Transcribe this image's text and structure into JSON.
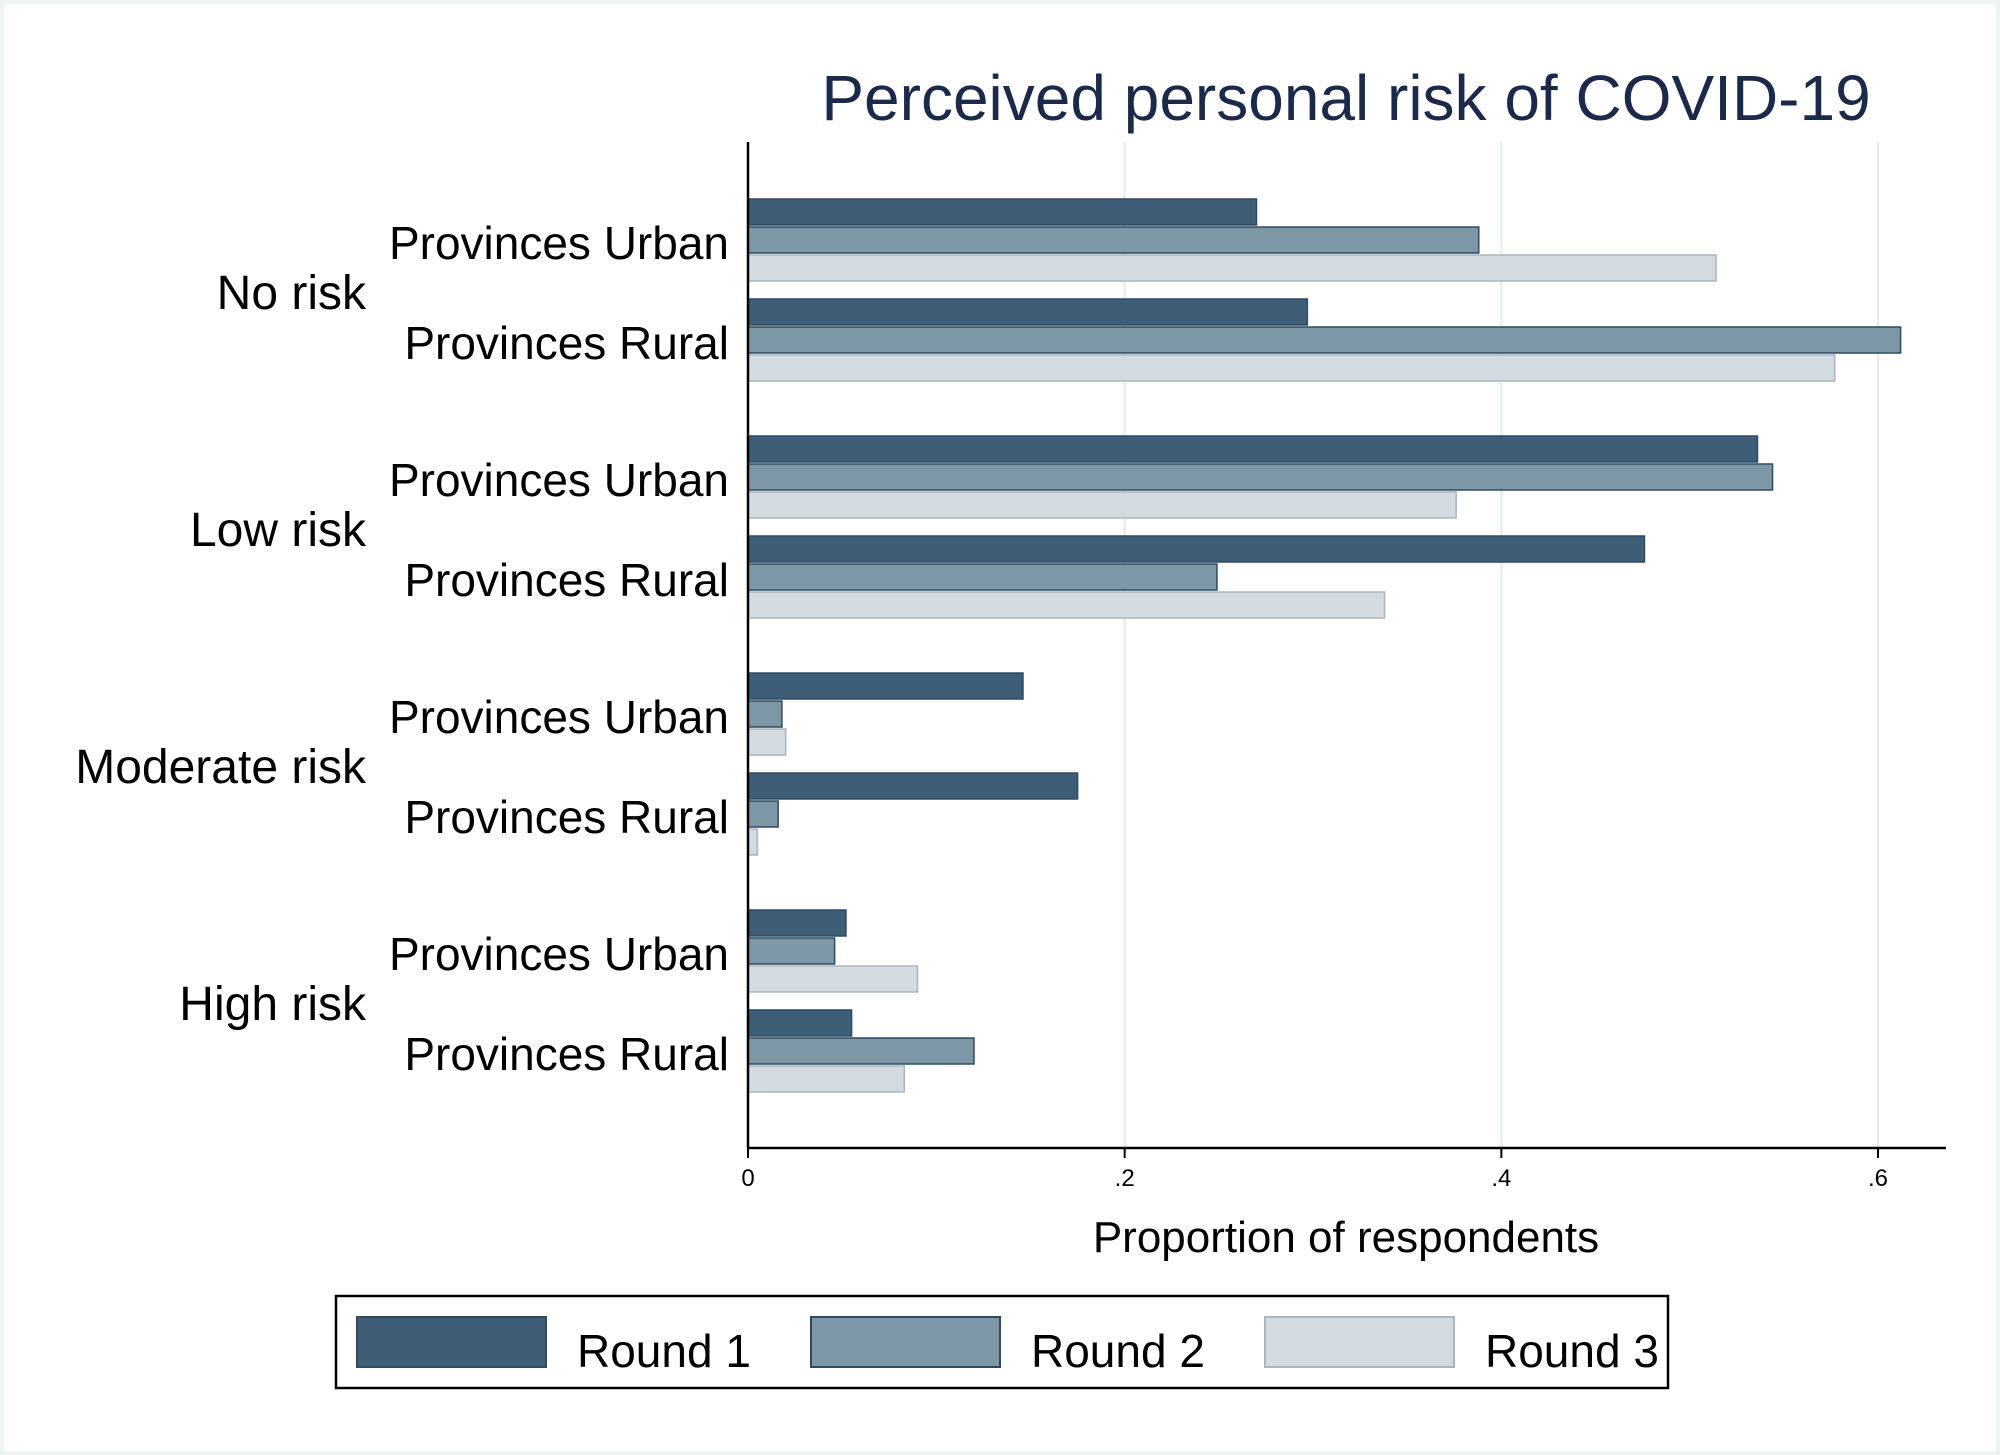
{
  "chart_data": {
    "type": "bar",
    "orientation": "horizontal",
    "title": "Perceived personal risk of COVID-19",
    "xlabel": "Proportion of respondents",
    "xlim": [
      0,
      0.64
    ],
    "x_ticks": [
      {
        "value": 0,
        "label": "0"
      },
      {
        "value": 0.2,
        "label": ".2"
      },
      {
        "value": 0.4,
        "label": ".4"
      },
      {
        "value": 0.6,
        "label": ".6"
      }
    ],
    "grid": true,
    "legend_position": "bottom",
    "groups": [
      "No risk",
      "Low risk",
      "Moderate risk",
      "High risk"
    ],
    "subcategories": [
      "Provinces Urban",
      "Provinces Rural"
    ],
    "series": [
      {
        "name": "Round 1",
        "color": "#3e5e78",
        "values": [
          [
            0.27,
            0.297
          ],
          [
            0.536,
            0.476
          ],
          [
            0.146,
            0.175
          ],
          [
            0.052,
            0.055
          ]
        ]
      },
      {
        "name": "Round 2",
        "color": "#7d97a6",
        "values": [
          [
            0.388,
            0.612
          ],
          [
            0.544,
            0.249
          ],
          [
            0.018,
            0.016
          ],
          [
            0.046,
            0.12
          ]
        ]
      },
      {
        "name": "Round 3",
        "color": "#d3dbe1",
        "values": [
          [
            0.514,
            0.577
          ],
          [
            0.376,
            0.338
          ],
          [
            0.02,
            0.005
          ],
          [
            0.09,
            0.083
          ]
        ]
      }
    ]
  }
}
